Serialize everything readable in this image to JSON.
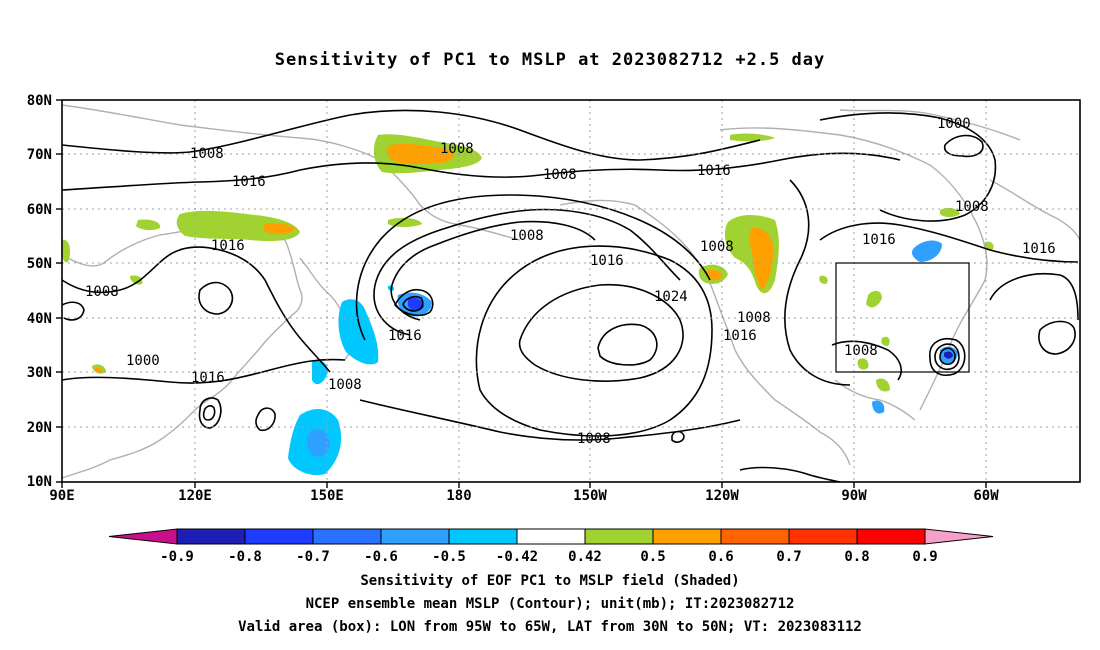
{
  "title": "Sensitivity of PC1 to MSLP at 2023082712 +2.5 day",
  "lat_labels": [
    "80N",
    "70N",
    "60N",
    "50N",
    "40N",
    "30N",
    "20N",
    "10N"
  ],
  "lon_labels": [
    "90E",
    "120E",
    "150E",
    "180",
    "150W",
    "120W",
    "90W",
    "60W"
  ],
  "contour_labels": [
    "1008",
    "1008",
    "1016",
    "1008",
    "1016",
    "1016",
    "1008",
    "1000",
    "1016",
    "1008",
    "1016",
    "1008",
    "1016",
    "1024",
    "1008",
    "1008",
    "1000",
    "1008",
    "1016",
    "1008",
    "1016",
    "1016",
    "1008"
  ],
  "colorbar": {
    "levels": [
      "-0.9",
      "-0.8",
      "-0.7",
      "-0.6",
      "-0.5",
      "-0.42",
      "0.42",
      "0.5",
      "0.6",
      "0.7",
      "0.8",
      "0.9"
    ],
    "colors": [
      "#c8108c",
      "#1e1eb4",
      "#1e3cff",
      "#2872ff",
      "#2fa0ff",
      "#00c8ff",
      "#ffffff",
      "#a0d232",
      "#ffa000",
      "#ff6400",
      "#ff3200",
      "#ff0000",
      "#f5a0c8"
    ]
  },
  "valid_box": {
    "lon_west": -95,
    "lon_east": -65,
    "lat_south": 30,
    "lat_north": 50
  },
  "captions": [
    "Sensitivity of EOF PC1 to MSLP field (Shaded)",
    "NCEP ensemble mean MSLP (Contour); unit(mb); IT:2023082712",
    "Valid area (box): LON from 95W to 65W, LAT from 30N to 50N; VT: 2023083112"
  ]
}
